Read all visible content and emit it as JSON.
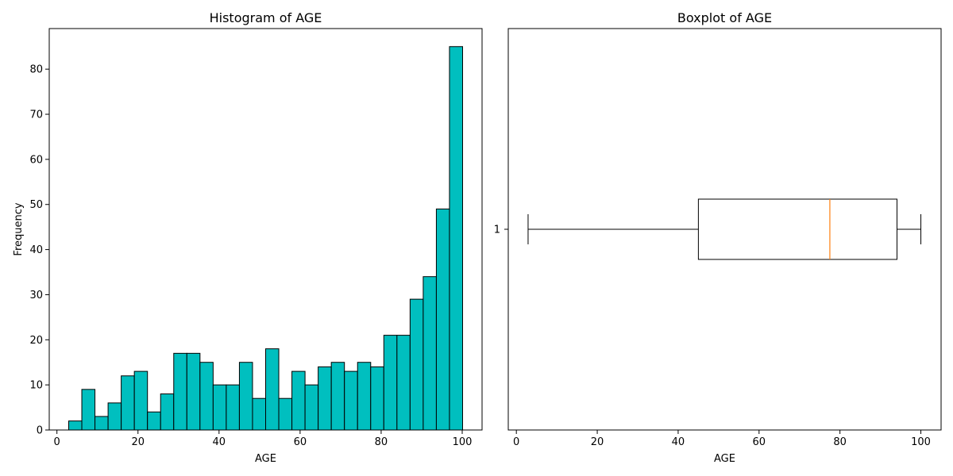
{
  "colors": {
    "bar_fill": "#00bfbf",
    "bar_edge": "#000000",
    "median": "#ff7f0e",
    "axis": "#000000"
  },
  "chart_data": [
    {
      "type": "bar",
      "subtype": "histogram",
      "title": "Histogram of AGE",
      "xlabel": "AGE",
      "ylabel": "Frequency",
      "xlim": [
        -1.9,
        104.9
      ],
      "ylim": [
        0,
        89
      ],
      "xticks": [
        0,
        20,
        40,
        60,
        80,
        100
      ],
      "yticks": [
        0,
        10,
        20,
        30,
        40,
        50,
        60,
        70,
        80
      ],
      "bin_start": 2.9,
      "bin_width": 3.24,
      "values": [
        2,
        9,
        3,
        6,
        12,
        13,
        4,
        8,
        17,
        17,
        15,
        10,
        10,
        15,
        7,
        18,
        7,
        13,
        10,
        14,
        15,
        13,
        15,
        14,
        21,
        21,
        29,
        34,
        49,
        85
      ],
      "grid": false
    },
    {
      "type": "boxplot",
      "orientation": "horizontal",
      "title": "Boxplot of AGE",
      "xlabel": "AGE",
      "xlim": [
        -2,
        105
      ],
      "xticks": [
        0,
        20,
        40,
        60,
        80,
        100
      ],
      "ytick_labels": [
        "1"
      ],
      "stats": {
        "whisker_low": 2.9,
        "q1": 45.0,
        "median": 77.5,
        "q3": 94.1,
        "whisker_high": 100.0
      },
      "grid": false
    }
  ]
}
